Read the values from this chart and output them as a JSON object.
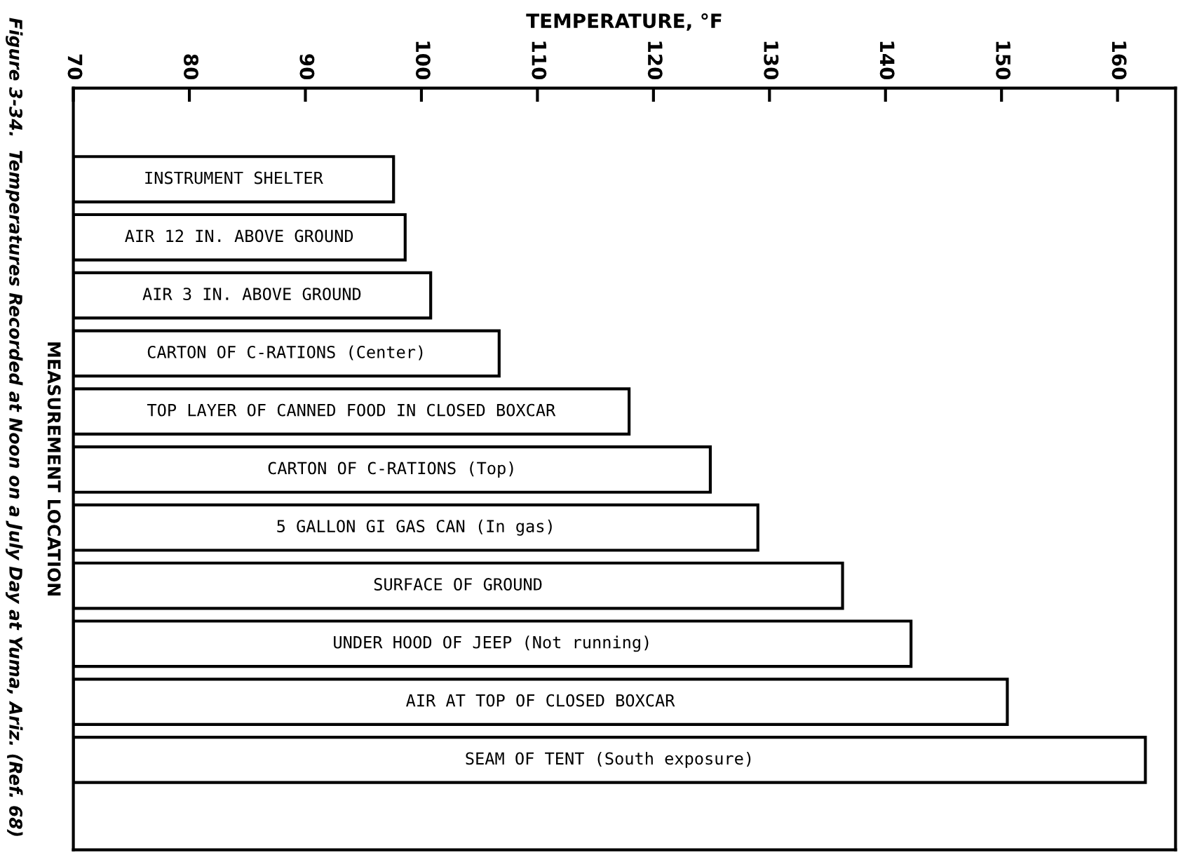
{
  "chart_data": {
    "type": "bar",
    "orientation": "horizontal",
    "xlabel": "TEMPERATURE, °F",
    "ylabel": "MEASUREMENT LOCATION",
    "categories": [
      "INSTRUMENT SHELTER",
      "AIR 12 IN. ABOVE GROUND",
      "AIR 3 IN. ABOVE GROUND",
      "CARTON OF C-RATIONS (Center)",
      "TOP LAYER OF CANNED FOOD IN CLOSED BOXCAR",
      "CARTON OF C-RATIONS (Top)",
      "5 GALLON GI GAS CAN (In gas)",
      "SURFACE OF GROUND",
      "UNDER HOOD OF JEEP (Not running)",
      "AIR AT TOP OF CLOSED BOXCAR",
      "SEAM OF TENT (South exposure)"
    ],
    "values": [
      97.6,
      98.6,
      100.8,
      106.7,
      117.9,
      124.9,
      129.0,
      136.3,
      142.2,
      150.5,
      162.4
    ],
    "color": "#ffffff",
    "xlim": [
      70,
      165
    ],
    "xticks": [
      70,
      80,
      90,
      100,
      110,
      120,
      130,
      140,
      150,
      160
    ],
    "tick_labels": "x",
    "grid": false,
    "legend": false,
    "annotations": [
      "Figure 3-34.  Temperatures Recorded at Noon on a July Day at Yuma, Ariz. (Ref. 68)"
    ]
  }
}
